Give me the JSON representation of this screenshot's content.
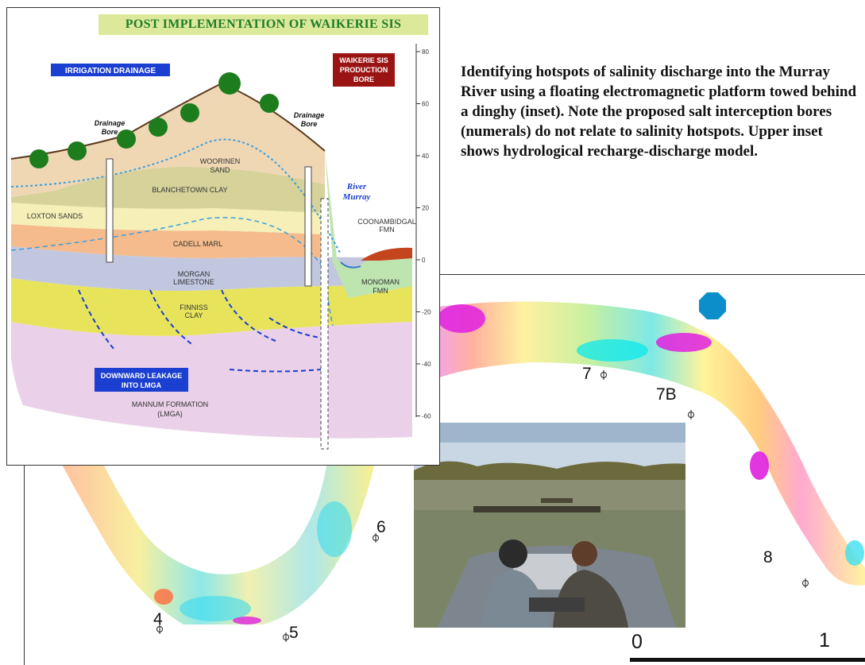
{
  "cross_section": {
    "title": "POST IMPLEMENTATION OF WAIKERIE SIS",
    "labels": {
      "irrigation_drainage": "IRRIGATION DRAINAGE",
      "production_bore": [
        "WAIKERIE SIS",
        "PRODUCTION",
        "BORE"
      ],
      "drainage_bore_left": [
        "Drainage",
        "Bore"
      ],
      "drainage_bore_right": [
        "Drainage",
        "Bore"
      ],
      "woorinen_sand": [
        "WOORINEN",
        "SAND"
      ],
      "blanchetown_clay": "BLANCHETOWN CLAY",
      "loxton_sands": "LOXTON SANDS",
      "cadell_marl": "CADELL MARL",
      "morgan_limestone": [
        "MORGAN",
        "LIMESTONE"
      ],
      "finniss_clay": [
        "FINNISS",
        "CLAY"
      ],
      "river_murray": [
        "River",
        "Murray"
      ],
      "coonambidgal": [
        "COONAMBIDGAL",
        "FMN"
      ],
      "monoman": [
        "MONOMAN",
        "FMN"
      ],
      "downward_leakage": [
        "DOWNWARD LEAKAGE",
        "INTO LMGA"
      ],
      "mannum_formation": [
        "MANNUM FORMATION",
        "(LMGA)"
      ]
    },
    "axis_ticks": [
      "80",
      "60",
      "40",
      "20",
      "0",
      "-20",
      "-40",
      "-60"
    ],
    "colors": {
      "title_bg": "#dde99a",
      "title_text": "#1f7d2a",
      "woorinen": "#efd7b4",
      "blanchetown": "#d6d29a",
      "loxton": "#f6efb7",
      "cadell": "#f5bb8c",
      "morgan": "#c2c7e0",
      "finniss": "#e7e45c",
      "mannum": "#ead0e8",
      "label_box": "#1b3fd0",
      "production_box": "#9b1414",
      "coonambidgal": "#c4441d",
      "monoman": "#bee4b0"
    }
  },
  "caption": "Identifying hotspots of salinity discharge into the Murray River using a floating electromagnetic platform towed behind a dinghy (inset). Note the proposed salt interception bores (numerals) do not relate to salinity hotspots. Upper inset shows hydrological recharge-discharge model.",
  "bores": [
    {
      "label": "4",
      "icon": "bore-marker-icon"
    },
    {
      "label": "5",
      "icon": "bore-marker-icon"
    },
    {
      "label": "6",
      "icon": "bore-marker-icon"
    },
    {
      "label": "7",
      "icon": "bore-marker-icon"
    },
    {
      "label": "7B",
      "icon": "bore-marker-icon"
    },
    {
      "label": "8",
      "icon": "bore-marker-icon"
    }
  ],
  "scale_bar": {
    "start": "0",
    "end": "1"
  },
  "markers": {
    "octagon_color": "#0b8ec9"
  }
}
